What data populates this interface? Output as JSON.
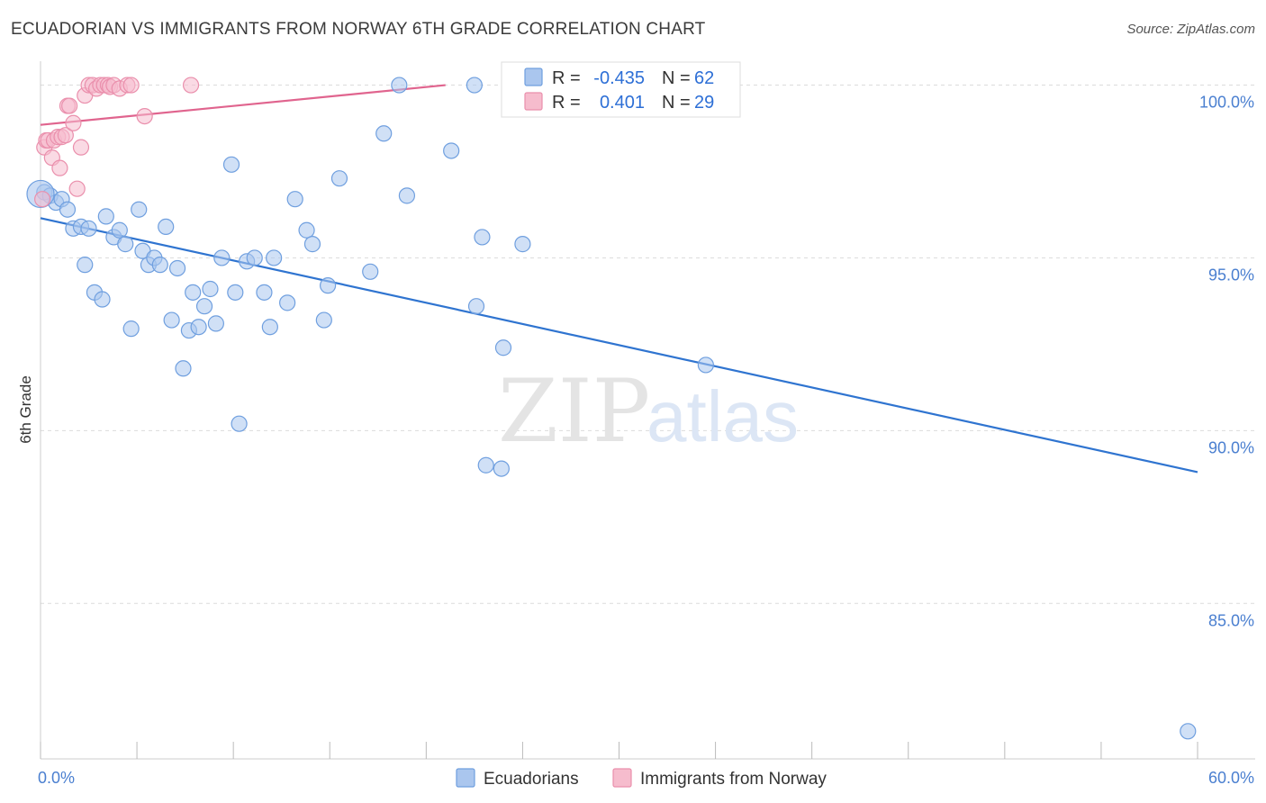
{
  "header": {
    "title": "ECUADORIAN VS IMMIGRANTS FROM NORWAY 6TH GRADE CORRELATION CHART",
    "source": "Source: ZipAtlas.com"
  },
  "watermark": {
    "zip": "ZIP",
    "atlas": "atlas"
  },
  "legend_top": {
    "rows": [
      {
        "r_label": "R =",
        "r_value": "-0.435",
        "n_label": "N =",
        "n_value": "62"
      },
      {
        "r_label": "R =",
        "r_value": "0.401",
        "n_label": "N =",
        "n_value": "29"
      }
    ]
  },
  "legend_bottom": {
    "items": [
      {
        "label": "Ecuadorians"
      },
      {
        "label": "Immigrants from Norway"
      }
    ]
  },
  "colors": {
    "blue_fill": "#aac6ee",
    "blue_stroke": "#6f9fdf",
    "blue_line": "#2f74d0",
    "pink_fill": "#f6bccd",
    "pink_stroke": "#ea8fac",
    "pink_line": "#e0648e",
    "grid": "#dcdcdc",
    "tick_label": "#4a7fd0"
  },
  "chart_data": {
    "type": "scatter",
    "xlabel": "",
    "ylabel": "6th Grade",
    "xlim": [
      0,
      60
    ],
    "ylim": [
      80.5,
      100.9
    ],
    "x_tick_labels": [
      "0.0%",
      "60.0%"
    ],
    "y_ticks": [
      85,
      90,
      95,
      100
    ],
    "y_tick_labels": [
      "85.0%",
      "90.0%",
      "95.0%",
      "100.0%"
    ],
    "grid": true,
    "legend_position": "top-center",
    "series": [
      {
        "name": "Ecuadorians",
        "color": "#aac6ee",
        "trend": {
          "x": [
            0,
            60
          ],
          "y": [
            96.15,
            88.8
          ]
        },
        "points": [
          [
            0.2,
            96.9
          ],
          [
            0.5,
            96.8
          ],
          [
            0.8,
            96.6
          ],
          [
            1.1,
            96.7
          ],
          [
            1.4,
            96.4
          ],
          [
            1.7,
            95.85
          ],
          [
            2.1,
            95.9
          ],
          [
            2.5,
            95.85
          ],
          [
            2.3,
            94.8
          ],
          [
            2.8,
            94.0
          ],
          [
            3.2,
            93.8
          ],
          [
            3.4,
            96.2
          ],
          [
            3.8,
            95.6
          ],
          [
            4.1,
            95.8
          ],
          [
            4.4,
            95.4
          ],
          [
            4.7,
            92.95
          ],
          [
            5.1,
            96.4
          ],
          [
            5.3,
            95.2
          ],
          [
            5.6,
            94.8
          ],
          [
            5.9,
            95.0
          ],
          [
            6.2,
            94.8
          ],
          [
            6.5,
            95.9
          ],
          [
            6.8,
            93.2
          ],
          [
            7.1,
            94.7
          ],
          [
            7.4,
            91.8
          ],
          [
            7.7,
            92.9
          ],
          [
            7.9,
            94.0
          ],
          [
            8.2,
            93.0
          ],
          [
            8.5,
            93.6
          ],
          [
            8.8,
            94.1
          ],
          [
            9.1,
            93.1
          ],
          [
            9.4,
            95.0
          ],
          [
            9.9,
            97.7
          ],
          [
            10.1,
            94.0
          ],
          [
            10.3,
            90.2
          ],
          [
            10.7,
            94.9
          ],
          [
            11.1,
            95.0
          ],
          [
            11.6,
            94.0
          ],
          [
            11.9,
            93.0
          ],
          [
            12.1,
            95.0
          ],
          [
            12.8,
            93.7
          ],
          [
            13.2,
            96.7
          ],
          [
            13.8,
            95.8
          ],
          [
            14.1,
            95.4
          ],
          [
            14.7,
            93.2
          ],
          [
            14.9,
            94.2
          ],
          [
            15.5,
            97.3
          ],
          [
            17.1,
            94.6
          ],
          [
            17.8,
            98.6
          ],
          [
            18.6,
            100.0
          ],
          [
            19.0,
            96.8
          ],
          [
            21.3,
            98.1
          ],
          [
            22.5,
            100.0
          ],
          [
            22.6,
            93.6
          ],
          [
            22.9,
            95.6
          ],
          [
            23.1,
            89.0
          ],
          [
            23.9,
            88.9
          ],
          [
            24.0,
            92.4
          ],
          [
            25.0,
            95.4
          ],
          [
            34.5,
            91.9
          ],
          [
            0.0,
            96.85
          ],
          [
            59.5,
            81.3
          ]
        ]
      },
      {
        "name": "Immigrants from Norway",
        "color": "#f6bccd",
        "trend": {
          "x": [
            0,
            21.0
          ],
          "y": [
            98.85,
            100.0
          ]
        },
        "points": [
          [
            0.1,
            96.7
          ],
          [
            0.2,
            98.2
          ],
          [
            0.3,
            98.4
          ],
          [
            0.4,
            98.4
          ],
          [
            0.6,
            97.9
          ],
          [
            0.7,
            98.4
          ],
          [
            0.9,
            98.5
          ],
          [
            1.0,
            97.6
          ],
          [
            1.1,
            98.5
          ],
          [
            1.3,
            98.55
          ],
          [
            1.4,
            99.4
          ],
          [
            1.5,
            99.4
          ],
          [
            1.7,
            98.9
          ],
          [
            1.9,
            97.0
          ],
          [
            2.1,
            98.2
          ],
          [
            2.3,
            99.7
          ],
          [
            2.5,
            100.0
          ],
          [
            2.7,
            100.0
          ],
          [
            2.9,
            99.9
          ],
          [
            3.1,
            100.0
          ],
          [
            3.3,
            100.0
          ],
          [
            3.5,
            100.0
          ],
          [
            3.6,
            99.95
          ],
          [
            3.8,
            100.0
          ],
          [
            4.1,
            99.9
          ],
          [
            4.5,
            100.0
          ],
          [
            4.7,
            100.0
          ],
          [
            5.4,
            99.1
          ],
          [
            7.8,
            100.0
          ]
        ]
      }
    ]
  }
}
